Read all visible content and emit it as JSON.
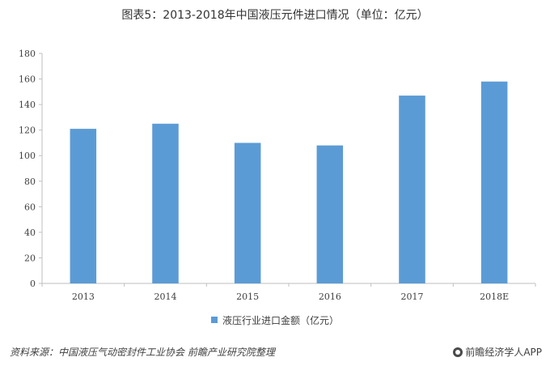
{
  "title": "图表5：2013-2018年中国液压元件进口情况（单位：亿元）",
  "chart_data": {
    "type": "bar",
    "categories": [
      "2013",
      "2014",
      "2015",
      "2016",
      "2017",
      "2018E"
    ],
    "series": [
      {
        "name": "液压行业进口金额（亿元）",
        "values": [
          121,
          125,
          110,
          108,
          147,
          158
        ]
      }
    ],
    "ylim": [
      0,
      180
    ],
    "yticks": [
      0,
      20,
      40,
      60,
      80,
      100,
      120,
      140,
      160,
      180
    ],
    "grid": false,
    "legend": "bottom",
    "bar_color": "#5b9bd5"
  },
  "source": "资料来源：中国液压气动密封件工业协会 前瞻产业研究院整理",
  "brand": "前瞻经济学人APP",
  "brand_icon": "brand-logo-icon"
}
